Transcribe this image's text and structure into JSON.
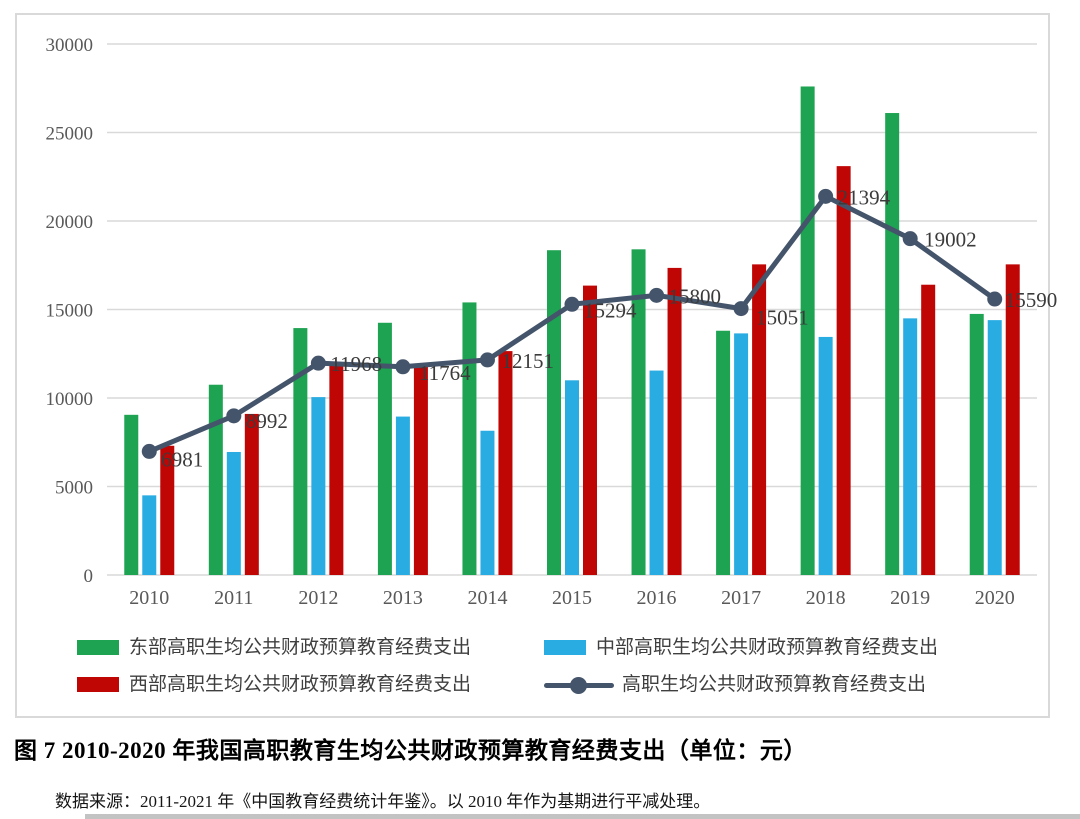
{
  "figure": {
    "caption": "图 7  2010-2020 年我国高职教育生均公共财政预算教育经费支出（单位：元）",
    "source": "数据来源：2011-2021 年《中国教育经费统计年鉴》。以 2010 年作为基期进行平减处理。"
  },
  "legend": {
    "east": "东部高职生均公共财政预算教育经费支出",
    "central": "中部高职生均公共财政预算教育经费支出",
    "west": "西部高职生均公共财政预算教育经费支出",
    "overall": "高职生均公共财政预算教育经费支出"
  },
  "colors": {
    "east": "#1EA352",
    "central": "#29ACE2",
    "west": "#C00505",
    "overall": "#44546A",
    "gridline": "#D9D9D9",
    "axis_text": "#595959",
    "point_label": "#3B3B3B",
    "frame_border": "#D9D9D9"
  },
  "chart_data": {
    "type": "bar",
    "overlay": "line",
    "title": "",
    "xlabel": "",
    "ylabel": "",
    "categories": [
      "2010",
      "2011",
      "2012",
      "2013",
      "2014",
      "2015",
      "2016",
      "2017",
      "2018",
      "2019",
      "2020"
    ],
    "series": [
      {
        "key": "east",
        "type": "bar",
        "name": "东部高职生均公共财政预算教育经费支出",
        "color": "#1EA352",
        "values": [
          9050,
          10750,
          13950,
          14250,
          15400,
          18350,
          18400,
          13800,
          27600,
          26100,
          14750
        ]
      },
      {
        "key": "central",
        "type": "bar",
        "name": "中部高职生均公共财政预算教育经费支出",
        "color": "#29ACE2",
        "values": [
          4500,
          6950,
          10050,
          8950,
          8150,
          11000,
          11550,
          13650,
          13450,
          14500,
          14400
        ]
      },
      {
        "key": "west",
        "type": "bar",
        "name": "西部高职生均公共财政预算教育经费支出",
        "color": "#C00505",
        "values": [
          7300,
          9100,
          11900,
          11800,
          12650,
          16350,
          17350,
          17550,
          23100,
          16400,
          17550
        ]
      },
      {
        "key": "overall",
        "type": "line",
        "name": "高职生均公共财政预算教育经费支出",
        "color": "#44546A",
        "values": [
          6981,
          8992,
          11968,
          11764,
          12151,
          15294,
          15800,
          15051,
          21394,
          19002,
          15590
        ],
        "data_labels": [
          "6981",
          "8992",
          "11968",
          "11764",
          "12151",
          "15294",
          "15800",
          "15051",
          "21394",
          "19002",
          "15590"
        ],
        "label_dx": [
          12,
          12,
          12,
          16,
          14,
          12,
          12,
          15,
          12,
          14,
          10
        ],
        "label_dy": [
          15,
          12,
          8,
          13,
          8,
          13,
          8,
          16,
          8,
          8,
          8
        ]
      }
    ],
    "ylim": [
      0,
      30000
    ],
    "ytick_step": 5000,
    "ytick_labels": [
      "0",
      "5000",
      "10000",
      "15000",
      "20000",
      "25000",
      "30000"
    ],
    "grid": "horizontal",
    "legend_position": "bottom"
  }
}
